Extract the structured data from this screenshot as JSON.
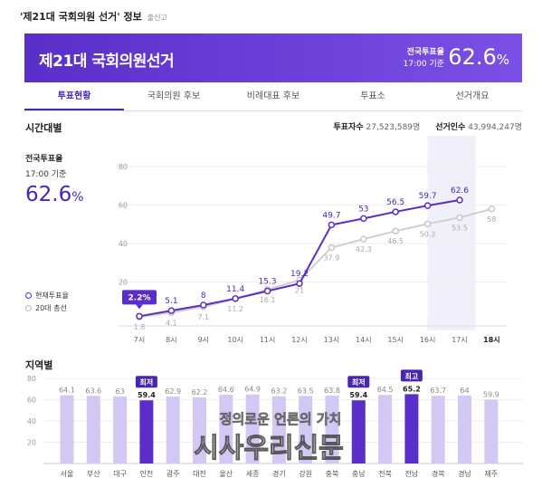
{
  "header": {
    "title": "'제21대 국회의원 선거' 정보",
    "report": "출신고"
  },
  "banner": {
    "name": "제21대 국회의원선거",
    "turnout_label": "전국투표율",
    "turnout_time": "17:00 기준",
    "turnout_value": "62.6",
    "unit": "%"
  },
  "tabs": [
    "투표현황",
    "국회의원 후보",
    "비례대표 후보",
    "투표소",
    "선거개요"
  ],
  "time_section": {
    "title": "시간대별",
    "voters_label": "투표자수",
    "voters_value": "27,523,589명",
    "electors_label": "선거인수",
    "electors_value": "43,994,247명",
    "national_label": "전국투표율",
    "national_time": "17:00 기준",
    "national_value": "62.6",
    "unit": "%",
    "legend_current": "현재투표율",
    "legend_prev": "20대 총선"
  },
  "region_section": {
    "title": "지역별",
    "min_badge": "최저",
    "max_badge": "최고"
  },
  "watermark": {
    "line1": "정의로운 언론의 가치",
    "line2": "시사우리신문"
  },
  "colors": {
    "accent": "#5a2ec8",
    "light": "#d3c8f3",
    "grey": "#c4c4c4"
  },
  "chart_data": [
    {
      "type": "line",
      "x": [
        "7시",
        "8시",
        "9시",
        "10시",
        "11시",
        "12시",
        "13시",
        "14시",
        "15시",
        "16시",
        "17시",
        "18시"
      ],
      "ylim": [
        0,
        80
      ],
      "yticks": [
        20,
        40,
        60,
        80
      ],
      "series": [
        {
          "name": "현재투표율",
          "values": [
            2.2,
            5.1,
            8,
            11.4,
            15.3,
            19.2,
            49.7,
            53,
            56.5,
            59.7,
            62.6,
            null
          ],
          "labels": [
            "2.2%",
            "5.1",
            "8",
            "11.4",
            "15.3",
            "19.2",
            "49.7",
            "53",
            "56.5",
            "59.7",
            "62.6",
            ""
          ]
        },
        {
          "name": "20대 총선",
          "values": [
            1.8,
            4.1,
            7.1,
            11.2,
            16.1,
            21,
            37.9,
            42.3,
            46.5,
            50.2,
            53.5,
            58
          ]
        }
      ]
    },
    {
      "type": "bar",
      "categories": [
        "서울",
        "부산",
        "대구",
        "인천",
        "광주",
        "대전",
        "울산",
        "세종",
        "경기",
        "강원",
        "충북",
        "충남",
        "전북",
        "전남",
        "경북",
        "경남",
        "제주"
      ],
      "values": [
        64.1,
        63.6,
        63,
        59.4,
        62.9,
        62.2,
        64.6,
        64.9,
        63.2,
        63.5,
        63.8,
        59.4,
        64.5,
        65.2,
        63.7,
        64,
        59.9
      ],
      "highlight": {
        "min": [
          3,
          11
        ],
        "max": [
          13
        ]
      },
      "ylim": [
        0,
        80
      ],
      "yticks": [
        20,
        40,
        60,
        80
      ]
    }
  ]
}
